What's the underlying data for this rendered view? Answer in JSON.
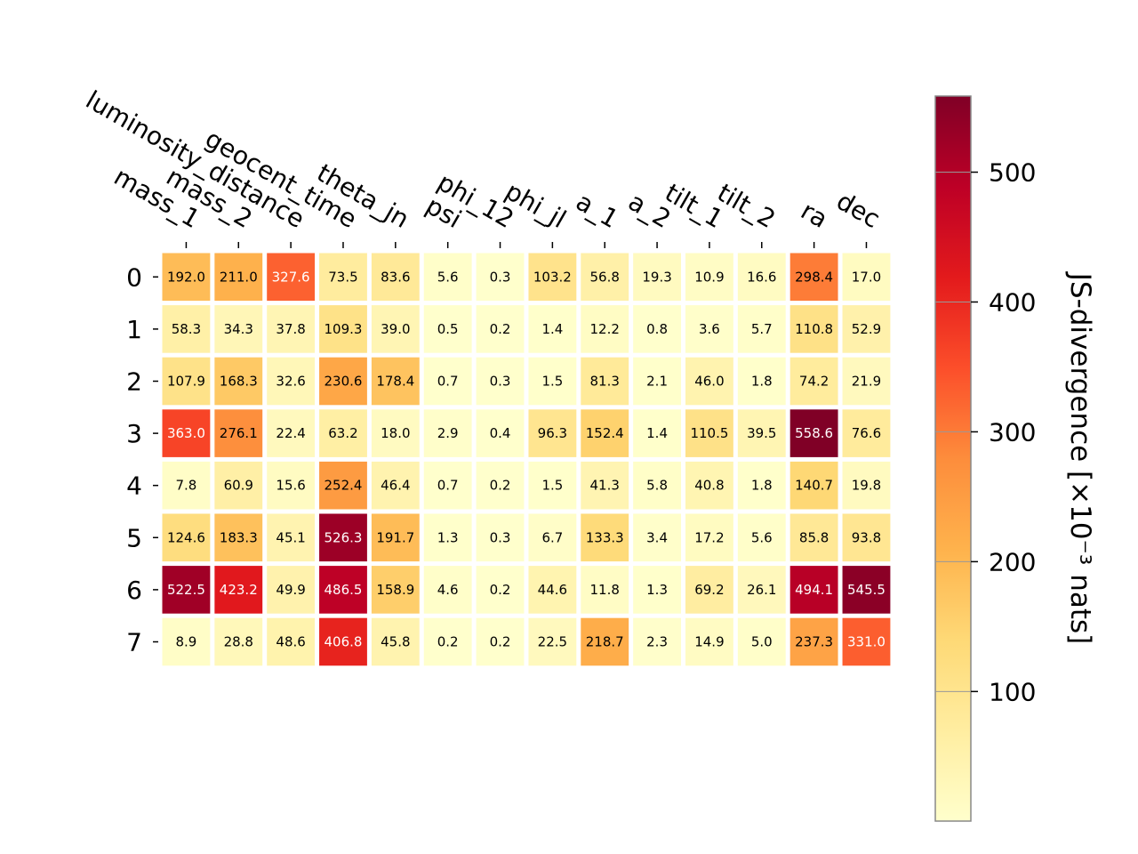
{
  "chart_data": {
    "type": "heatmap",
    "x_labels": [
      "mass_1",
      "mass_2",
      "luminosity_distance",
      "geocent_time",
      "theta_jn",
      "psi",
      "phi_12",
      "phi_jl",
      "a_1",
      "a_2",
      "tilt_1",
      "tilt_2",
      "ra",
      "dec"
    ],
    "y_labels": [
      "0",
      "1",
      "2",
      "3",
      "4",
      "5",
      "6",
      "7"
    ],
    "values": [
      [
        192.0,
        211.0,
        327.6,
        73.5,
        83.6,
        5.6,
        0.3,
        103.2,
        56.8,
        19.3,
        10.9,
        16.6,
        298.4,
        17.0
      ],
      [
        58.3,
        34.3,
        37.8,
        109.3,
        39.0,
        0.5,
        0.2,
        1.4,
        12.2,
        0.8,
        3.6,
        5.7,
        110.8,
        52.9
      ],
      [
        107.9,
        168.3,
        32.6,
        230.6,
        178.4,
        0.7,
        0.3,
        1.5,
        81.3,
        2.1,
        46.0,
        1.8,
        74.2,
        21.9
      ],
      [
        363.0,
        276.1,
        22.4,
        63.2,
        18.0,
        2.9,
        0.4,
        96.3,
        152.4,
        1.4,
        110.5,
        39.5,
        558.6,
        76.6
      ],
      [
        7.8,
        60.9,
        15.6,
        252.4,
        46.4,
        0.7,
        0.2,
        1.5,
        41.3,
        5.8,
        40.8,
        1.8,
        140.7,
        19.8
      ],
      [
        124.6,
        183.3,
        45.1,
        526.3,
        191.7,
        1.3,
        0.3,
        6.7,
        133.3,
        3.4,
        17.2,
        5.6,
        85.8,
        93.8
      ],
      [
        522.5,
        423.2,
        49.9,
        486.5,
        158.9,
        4.6,
        0.2,
        44.6,
        11.8,
        1.3,
        69.2,
        26.1,
        494.1,
        545.5
      ],
      [
        8.9,
        28.8,
        48.6,
        406.8,
        45.8,
        0.2,
        0.2,
        22.5,
        218.7,
        2.3,
        14.9,
        5.0,
        237.3,
        331.0
      ]
    ],
    "colormap": "YlOrRd",
    "vmin": 0.2,
    "vmax": 558.6,
    "colorbar": {
      "label": "JS-divergence [×10⁻³ nats]",
      "ticks": [
        100,
        200,
        300,
        400,
        500
      ]
    }
  }
}
